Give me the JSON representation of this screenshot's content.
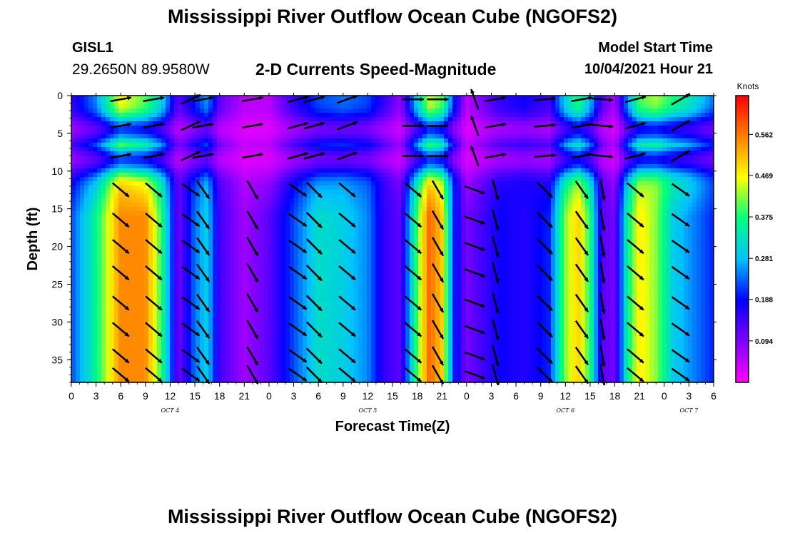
{
  "header": {
    "title": "Mississippi River Outflow Ocean Cube (NGOFS2)",
    "station_id": "GISL1",
    "station_coords": "29.2650N  89.9580W",
    "subtitle": "2-D Currents Speed-Magnitude",
    "start_label": "Model Start Time",
    "start_value": "10/04/2021 Hour 21"
  },
  "footer": {
    "title": "Mississippi River Outflow Ocean Cube (NGOFS2)"
  },
  "chart_data": {
    "type": "heatmap",
    "title": "2-D Currents Speed-Magnitude",
    "xlabel": "Forecast Time(Z)",
    "ylabel": "Depth (ft)",
    "x_range_hours": [
      0,
      78
    ],
    "y_range_ft": [
      0,
      38
    ],
    "y_inverted": true,
    "xticks": [
      "0",
      "3",
      "6",
      "9",
      "12",
      "15",
      "18",
      "21",
      "0",
      "3",
      "6",
      "9",
      "12",
      "15",
      "18",
      "21",
      "0",
      "3",
      "6",
      "9",
      "12",
      "15",
      "18",
      "21",
      "0",
      "3",
      "6"
    ],
    "yticks": [
      0,
      5,
      10,
      15,
      20,
      25,
      30,
      35
    ],
    "date_labels": [
      {
        "text": "OCT 4",
        "hour": 12
      },
      {
        "text": "OCT 5",
        "hour": 36
      },
      {
        "text": "OCT 6",
        "hour": 60
      },
      {
        "text": "OCT 7",
        "hour": 75
      }
    ],
    "colorbar": {
      "title": "Knots",
      "range": [
        0,
        0.65
      ],
      "ticks": [
        "0.562",
        "0.469",
        "0.375",
        "0.281",
        "0.188",
        "0.094"
      ],
      "tick_values": [
        0.562,
        0.469,
        0.375,
        0.281,
        0.188,
        0.094
      ],
      "colors": [
        "#ff00ff",
        "#8000ff",
        "#0000ff",
        "#00c0ff",
        "#00ff80",
        "#ffff00",
        "#ff8000",
        "#ff0000"
      ]
    },
    "speed_bands": [
      {
        "hour": 0,
        "surface": 0.15,
        "deep": 0.22
      },
      {
        "hour": 3,
        "surface": 0.25,
        "deep": 0.36
      },
      {
        "hour": 6,
        "surface": 0.47,
        "deep": 0.55
      },
      {
        "hour": 9,
        "surface": 0.4,
        "deep": 0.55
      },
      {
        "hour": 11,
        "surface": 0.3,
        "deep": 0.38
      },
      {
        "hour": 13,
        "surface": 0.12,
        "deep": 0.1
      },
      {
        "hour": 15,
        "surface": 0.2,
        "deep": 0.24
      },
      {
        "hour": 16.5,
        "surface": 0.26,
        "deep": 0.3
      },
      {
        "hour": 18,
        "surface": 0.12,
        "deep": 0.14
      },
      {
        "hour": 21,
        "surface": 0.05,
        "deep": 0.07
      },
      {
        "hour": 24,
        "surface": 0.05,
        "deep": 0.12
      },
      {
        "hour": 27,
        "surface": 0.15,
        "deep": 0.22
      },
      {
        "hour": 30,
        "surface": 0.22,
        "deep": 0.32
      },
      {
        "hour": 33,
        "surface": 0.24,
        "deep": 0.3
      },
      {
        "hour": 36,
        "surface": 0.22,
        "deep": 0.25
      },
      {
        "hour": 38,
        "surface": 0.15,
        "deep": 0.15
      },
      {
        "hour": 40,
        "surface": 0.08,
        "deep": 0.12
      },
      {
        "hour": 42,
        "surface": 0.3,
        "deep": 0.4
      },
      {
        "hour": 43.5,
        "surface": 0.45,
        "deep": 0.58
      },
      {
        "hour": 45,
        "surface": 0.4,
        "deep": 0.5
      },
      {
        "hour": 46.5,
        "surface": 0.2,
        "deep": 0.2
      },
      {
        "hour": 48,
        "surface": 0.05,
        "deep": 0.1
      },
      {
        "hour": 50,
        "surface": 0.1,
        "deep": 0.14
      },
      {
        "hour": 52,
        "surface": 0.15,
        "deep": 0.18
      },
      {
        "hour": 55,
        "surface": 0.18,
        "deep": 0.16
      },
      {
        "hour": 58,
        "surface": 0.14,
        "deep": 0.2
      },
      {
        "hour": 60,
        "surface": 0.3,
        "deep": 0.42
      },
      {
        "hour": 61.5,
        "surface": 0.38,
        "deep": 0.5
      },
      {
        "hour": 63,
        "surface": 0.28,
        "deep": 0.38
      },
      {
        "hour": 64.5,
        "surface": 0.12,
        "deep": 0.12
      },
      {
        "hour": 66,
        "surface": 0.06,
        "deep": 0.1
      },
      {
        "hour": 67.5,
        "surface": 0.25,
        "deep": 0.35
      },
      {
        "hour": 69,
        "surface": 0.4,
        "deep": 0.48
      },
      {
        "hour": 71,
        "surface": 0.43,
        "deep": 0.42
      },
      {
        "hour": 73,
        "surface": 0.38,
        "deep": 0.3
      },
      {
        "hour": 75,
        "surface": 0.34,
        "deep": 0.26
      },
      {
        "hour": 78,
        "surface": 0.24,
        "deep": 0.2
      }
    ],
    "slow_layers_ft": [
      4.5,
      8.5
    ],
    "vector_rows_ft": [
      0.5,
      4,
      8,
      12.5,
      16.5,
      20,
      23.5,
      27.5,
      31,
      34.5,
      37
    ],
    "vector_columns": [
      {
        "hour": 6,
        "dir_deg": 130,
        "upper_dir_deg": 80
      },
      {
        "hour": 10,
        "dir_deg": 130,
        "upper_dir_deg": 80
      },
      {
        "hour": 14.5,
        "dir_deg": 125,
        "upper_dir_deg": 65
      },
      {
        "hour": 16,
        "dir_deg": 145,
        "upper_dir_deg": 80
      },
      {
        "hour": 22,
        "dir_deg": 150,
        "upper_dir_deg": 80
      },
      {
        "hour": 27.5,
        "dir_deg": 125,
        "upper_dir_deg": 75
      },
      {
        "hour": 29.5,
        "dir_deg": 135,
        "upper_dir_deg": 75
      },
      {
        "hour": 33.5,
        "dir_deg": 130,
        "upper_dir_deg": 70
      },
      {
        "hour": 41.5,
        "dir_deg": 130,
        "upper_dir_deg": 90
      },
      {
        "hour": 44.5,
        "dir_deg": 150,
        "upper_dir_deg": 90
      },
      {
        "hour": 49,
        "dir_deg": 110,
        "upper_dir_deg": -20
      },
      {
        "hour": 51.5,
        "dir_deg": 165,
        "upper_dir_deg": 80
      },
      {
        "hour": 57.5,
        "dir_deg": 135,
        "upper_dir_deg": 85
      },
      {
        "hour": 62,
        "dir_deg": 145,
        "upper_dir_deg": 80
      },
      {
        "hour": 64.5,
        "dir_deg": 170,
        "upper_dir_deg": 95
      },
      {
        "hour": 68.5,
        "dir_deg": 130,
        "upper_dir_deg": 75
      },
      {
        "hour": 74,
        "dir_deg": 125,
        "upper_dir_deg": 60
      }
    ]
  }
}
